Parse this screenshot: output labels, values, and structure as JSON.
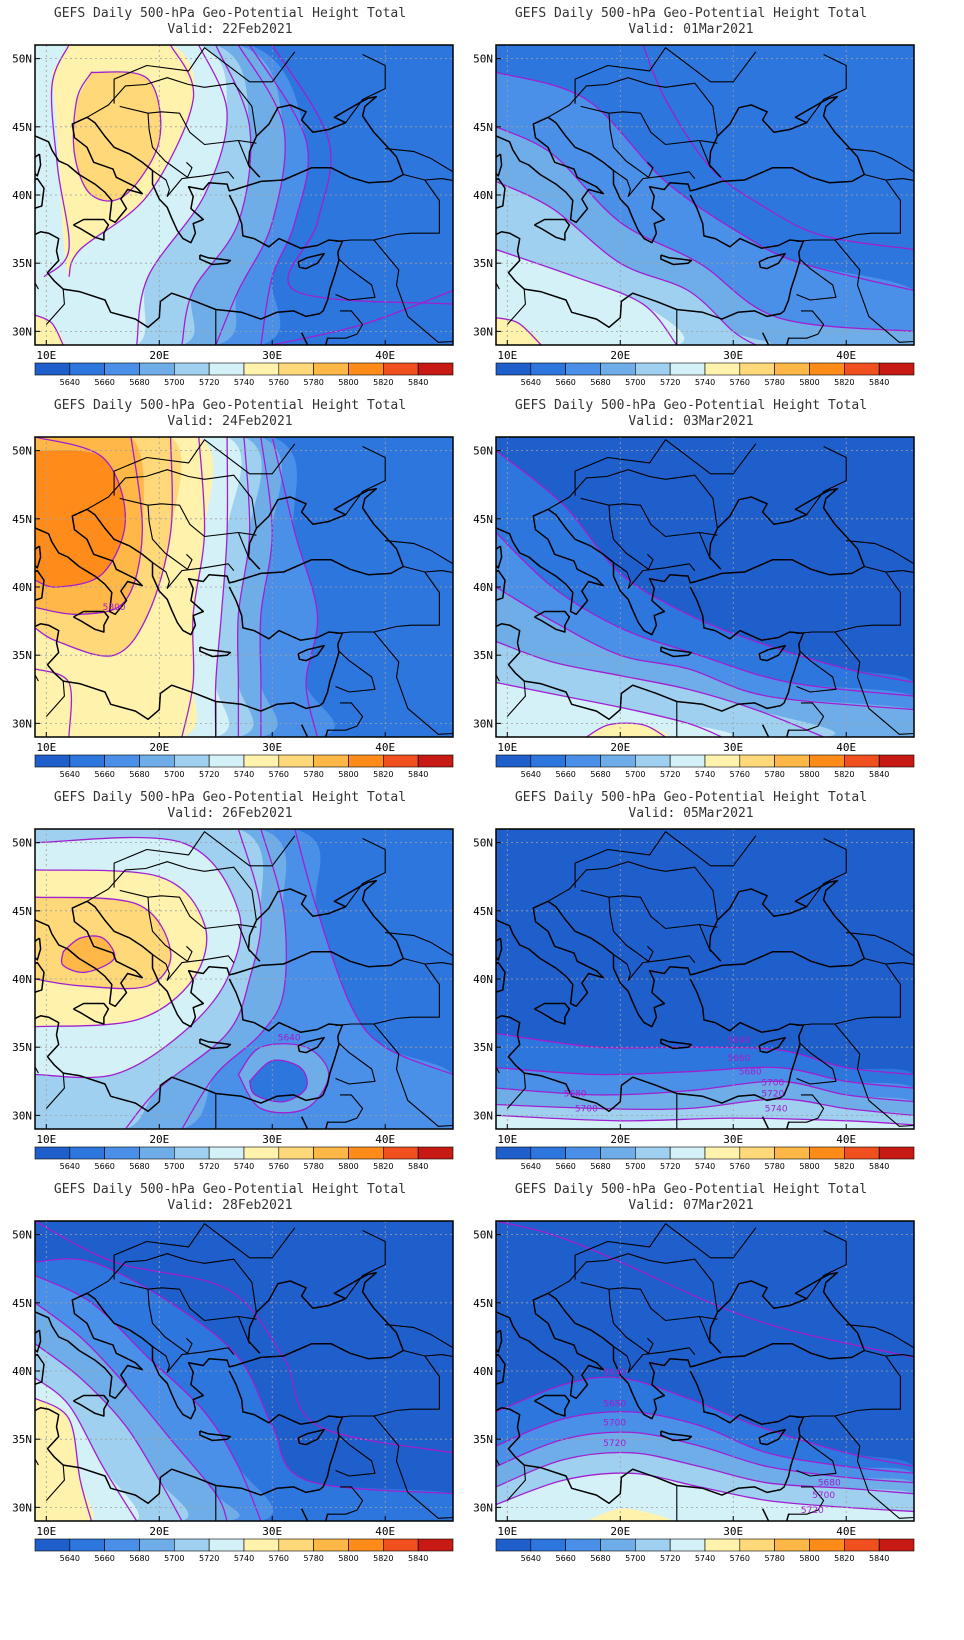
{
  "figure": {
    "colorbar": {
      "levels": [
        "5640",
        "5660",
        "5680",
        "5700",
        "5720",
        "5740",
        "5760",
        "5780",
        "5800",
        "5820",
        "5840"
      ],
      "colors": [
        "#1f5fcc",
        "#2c76de",
        "#4a8fe8",
        "#6fade9",
        "#9fd0f0",
        "#d4f1f8",
        "#fff2ad",
        "#ffd87a",
        "#ffb848",
        "#ff8c1a",
        "#f0501e",
        "#c81a14"
      ]
    },
    "axes": {
      "lon_ticks": [
        "10E",
        "20E",
        "30E",
        "40E"
      ],
      "lat_ticks": [
        "50N",
        "45N",
        "40N",
        "35N",
        "30N"
      ]
    },
    "colors": {
      "contour": "#a020d0",
      "coast": "#000000",
      "grid": "#a0a0a0",
      "cb_label": "#000000"
    },
    "panels": [
      {
        "title": "GEFS Daily 500-hPa Geo-Potential Height Total",
        "valid": "Valid: 22Feb2021",
        "contour_labels": []
      },
      {
        "title": "GEFS Daily 500-hPa Geo-Potential Height Total",
        "valid": "Valid: 01Mar2021",
        "contour_labels": []
      },
      {
        "title": "GEFS Daily 500-hPa Geo-Potential Height Total",
        "valid": "Valid: 24Feb2021",
        "contour_labels": [
          "5800"
        ]
      },
      {
        "title": "GEFS Daily 500-hPa Geo-Potential Height Total",
        "valid": "Valid: 03Mar2021",
        "contour_labels": []
      },
      {
        "title": "GEFS Daily 500-hPa Geo-Potential Height Total",
        "valid": "Valid: 26Feb2021",
        "contour_labels": [
          "5640"
        ]
      },
      {
        "title": "GEFS Daily 500-hPa Geo-Potential Height Total",
        "valid": "Valid: 05Mar2021",
        "contour_labels": [
          "5640",
          "5660",
          "5680",
          "5700",
          "5720",
          "5740",
          "5680",
          "5700"
        ]
      },
      {
        "title": "GEFS Daily 500-hPa Geo-Potential Height Total",
        "valid": "Valid: 28Feb2021",
        "contour_labels": []
      },
      {
        "title": "GEFS Daily 500-hPa Geo-Potential Height Total",
        "valid": "Valid: 07Mar2021",
        "contour_labels": [
          "5640",
          "5680",
          "5700",
          "5720",
          "5680",
          "5700",
          "5720"
        ]
      }
    ]
  }
}
